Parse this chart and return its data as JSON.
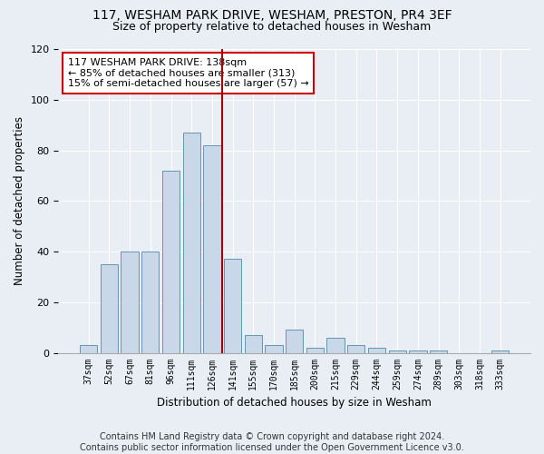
{
  "title1": "117, WESHAM PARK DRIVE, WESHAM, PRESTON, PR4 3EF",
  "title2": "Size of property relative to detached houses in Wesham",
  "xlabel": "Distribution of detached houses by size in Wesham",
  "ylabel": "Number of detached properties",
  "categories": [
    "37sqm",
    "52sqm",
    "67sqm",
    "81sqm",
    "96sqm",
    "111sqm",
    "126sqm",
    "141sqm",
    "155sqm",
    "170sqm",
    "185sqm",
    "200sqm",
    "215sqm",
    "229sqm",
    "244sqm",
    "259sqm",
    "274sqm",
    "289sqm",
    "303sqm",
    "318sqm",
    "333sqm"
  ],
  "values": [
    3,
    35,
    40,
    40,
    72,
    87,
    82,
    37,
    7,
    3,
    9,
    2,
    6,
    3,
    2,
    1,
    1,
    1,
    0,
    0,
    1
  ],
  "bar_color": "#c8d8e8",
  "bar_edge_color": "#5588aa",
  "vline_color": "#aa0000",
  "annotation_text": "117 WESHAM PARK DRIVE: 138sqm\n← 85% of detached houses are smaller (313)\n15% of semi-detached houses are larger (57) →",
  "annotation_box_color": "#ffffff",
  "annotation_box_edge": "#cc0000",
  "ylim": [
    0,
    120
  ],
  "yticks": [
    0,
    20,
    40,
    60,
    80,
    100,
    120
  ],
  "footer": "Contains HM Land Registry data © Crown copyright and database right 2024.\nContains public sector information licensed under the Open Government Licence v3.0.",
  "background_color": "#e8eef4",
  "plot_background": "#e8eef4",
  "title1_fontsize": 10,
  "title2_fontsize": 9,
  "label_fontsize": 8.5,
  "footer_fontsize": 7,
  "vline_x_index": 7
}
